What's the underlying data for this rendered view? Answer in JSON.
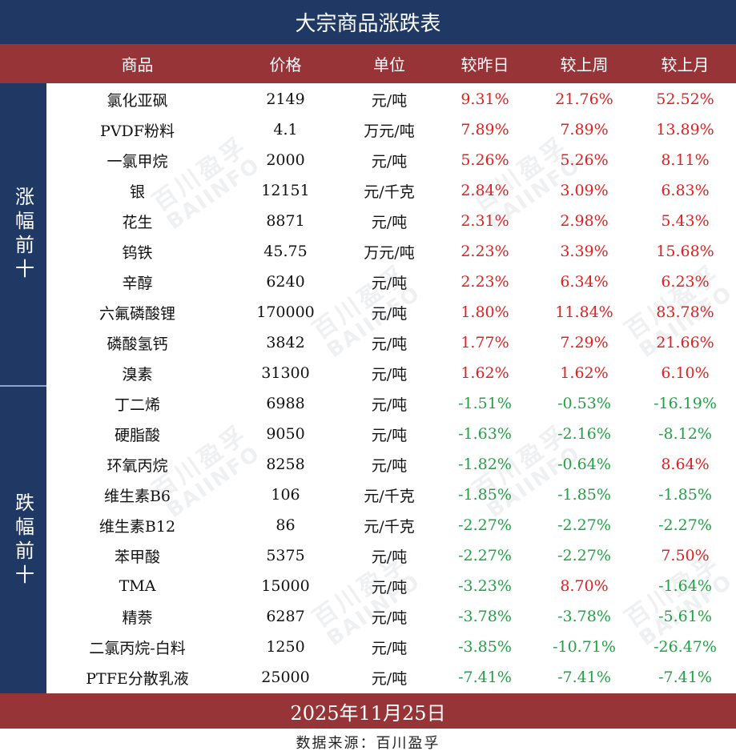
{
  "title": "大宗商品涨跌表",
  "headers": {
    "name": "商品",
    "price": "价格",
    "unit": "单位",
    "day": "较昨日",
    "week": "较上周",
    "month": "较上月"
  },
  "groups": {
    "up": "涨幅前十",
    "down": "跌幅前十"
  },
  "rows": [
    {
      "name": "氯化亚砜",
      "price": "2149",
      "unit": "元/吨",
      "day": "9.31%",
      "week": "21.76%",
      "month": "52.52%"
    },
    {
      "name": "PVDF粉料",
      "price": "4.1",
      "unit": "万元/吨",
      "day": "7.89%",
      "week": "7.89%",
      "month": "13.89%"
    },
    {
      "name": "一氯甲烷",
      "price": "2000",
      "unit": "元/吨",
      "day": "5.26%",
      "week": "5.26%",
      "month": "8.11%"
    },
    {
      "name": "银",
      "price": "12151",
      "unit": "元/千克",
      "day": "2.84%",
      "week": "3.09%",
      "month": "6.83%"
    },
    {
      "name": "花生",
      "price": "8871",
      "unit": "元/吨",
      "day": "2.31%",
      "week": "2.98%",
      "month": "5.43%"
    },
    {
      "name": "钨铁",
      "price": "45.75",
      "unit": "万元/吨",
      "day": "2.23%",
      "week": "3.39%",
      "month": "15.68%"
    },
    {
      "name": "辛醇",
      "price": "6240",
      "unit": "元/吨",
      "day": "2.23%",
      "week": "6.34%",
      "month": "6.23%"
    },
    {
      "name": "六氟磷酸锂",
      "price": "170000",
      "unit": "元/吨",
      "day": "1.80%",
      "week": "11.84%",
      "month": "83.78%"
    },
    {
      "name": "磷酸氢钙",
      "price": "3842",
      "unit": "元/吨",
      "day": "1.77%",
      "week": "7.29%",
      "month": "21.66%"
    },
    {
      "name": "溴素",
      "price": "31300",
      "unit": "元/吨",
      "day": "1.62%",
      "week": "1.62%",
      "month": "6.10%"
    },
    {
      "name": "丁二烯",
      "price": "6988",
      "unit": "元/吨",
      "day": "-1.51%",
      "week": "-0.53%",
      "month": "-16.19%"
    },
    {
      "name": "硬脂酸",
      "price": "9050",
      "unit": "元/吨",
      "day": "-1.63%",
      "week": "-2.16%",
      "month": "-8.12%"
    },
    {
      "name": "环氧丙烷",
      "price": "8258",
      "unit": "元/吨",
      "day": "-1.82%",
      "week": "-0.64%",
      "month": "8.64%"
    },
    {
      "name": "维生素B6",
      "price": "106",
      "unit": "元/千克",
      "day": "-1.85%",
      "week": "-1.85%",
      "month": "-1.85%"
    },
    {
      "name": "维生素B12",
      "price": "86",
      "unit": "元/千克",
      "day": "-2.27%",
      "week": "-2.27%",
      "month": "-2.27%"
    },
    {
      "name": "苯甲酸",
      "price": "5375",
      "unit": "元/吨",
      "day": "-2.27%",
      "week": "-2.27%",
      "month": "7.50%"
    },
    {
      "name": "TMA",
      "price": "15000",
      "unit": "元/吨",
      "day": "-3.23%",
      "week": "8.70%",
      "month": "-1.64%"
    },
    {
      "name": "精萘",
      "price": "6287",
      "unit": "元/吨",
      "day": "-3.78%",
      "week": "-3.78%",
      "month": "-5.61%"
    },
    {
      "name": "二氯丙烷-白料",
      "price": "1250",
      "unit": "元/吨",
      "day": "-3.85%",
      "week": "-10.71%",
      "month": "-26.47%"
    },
    {
      "name": "PTFE分散乳液",
      "price": "25000",
      "unit": "元/吨",
      "day": "-7.41%",
      "week": "-7.41%",
      "month": "-7.41%"
    }
  ],
  "date": "2025年11月25日",
  "source": "数据来源：百川盈孚",
  "watermark": {
    "cn": "百川盈孚",
    "en": "BAIINFO"
  },
  "colors": {
    "navy": "#1f3864",
    "maroon": "#963437",
    "up": "#e0201e",
    "down": "#21a045"
  }
}
